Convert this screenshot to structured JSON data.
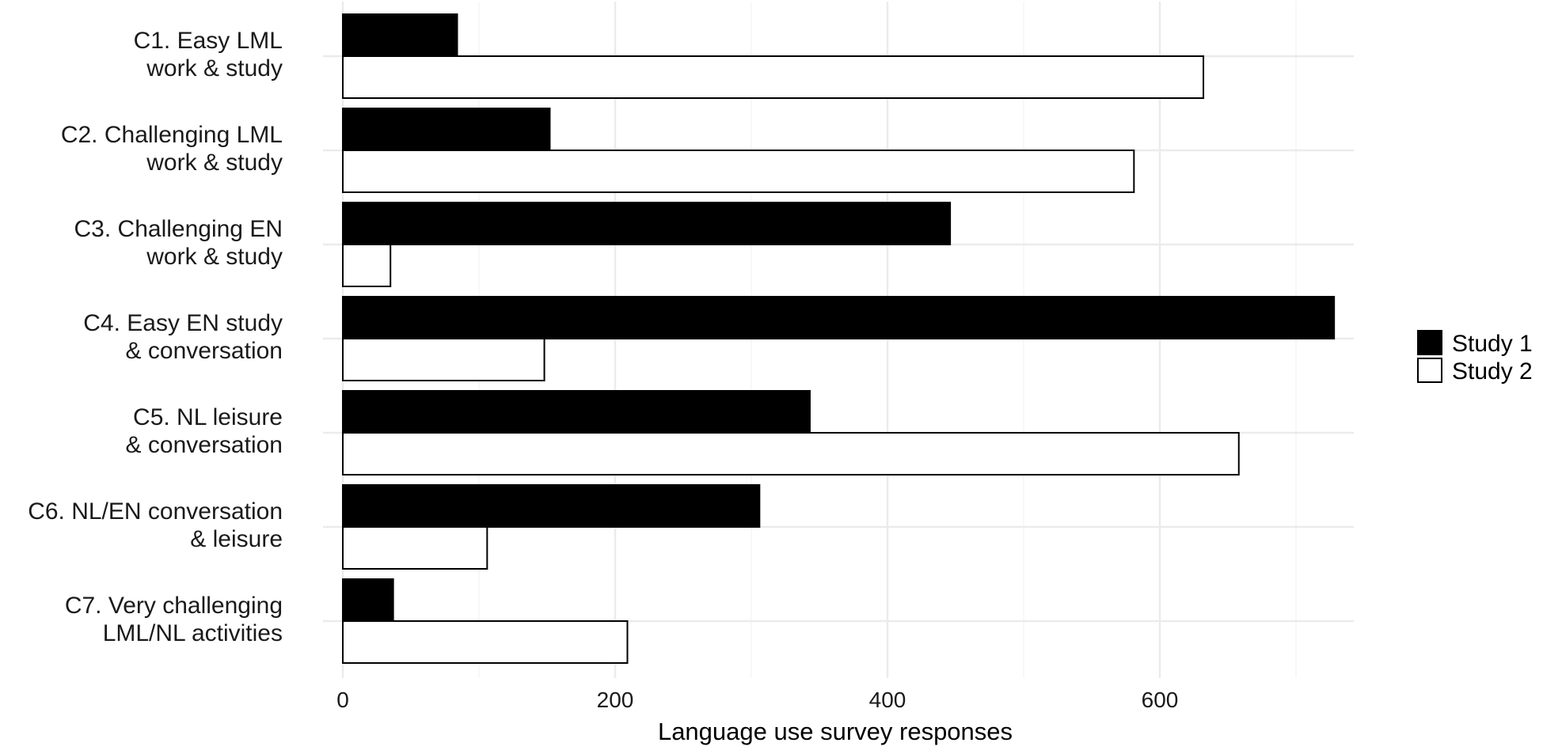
{
  "chart_data": {
    "type": "bar",
    "orientation": "horizontal",
    "title": "",
    "xlabel": "Language use survey responses",
    "ylabel": "",
    "xlim": [
      0,
      740
    ],
    "xticks": [
      0,
      200,
      400,
      600
    ],
    "grid": true,
    "legend_position": "right",
    "categories": [
      [
        "C1. Easy LML",
        "work & study"
      ],
      [
        "C2. Challenging LML",
        "work & study"
      ],
      [
        "C3. Challenging EN",
        "work & study"
      ],
      [
        "C4. Easy EN study",
        "& conversation"
      ],
      [
        "C5. NL leisure",
        "& conversation"
      ],
      [
        "C6. NL/EN conversation",
        "& leisure"
      ],
      [
        "C7. Very challenging",
        "LML/NL activities"
      ]
    ],
    "series": [
      {
        "name": "Study 1",
        "color": "#000000",
        "values": [
          84,
          152,
          446,
          728,
          343,
          306,
          37
        ]
      },
      {
        "name": "Study 2",
        "color": "#ffffff",
        "values": [
          632,
          581,
          35,
          148,
          658,
          106,
          209
        ]
      }
    ]
  }
}
